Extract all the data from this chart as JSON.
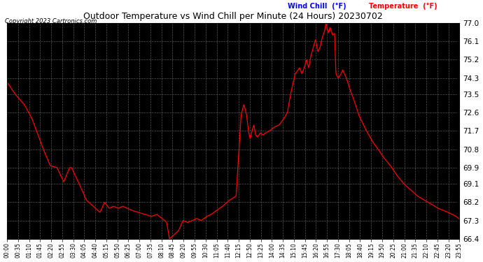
{
  "title": "Outdoor Temperature vs Wind Chill per Minute (24 Hours) 20230702",
  "copyright": "Copyright 2023 Cartronics.com",
  "legend_wind_chill": "Wind Chill  (°F)",
  "legend_temperature": "Temperature  (°F)",
  "wind_chill_color": "blue",
  "temperature_color": "red",
  "line_color": "red",
  "bg_color": "#000000",
  "fig_bg_color": "#ffffff",
  "grid_color": "#555555",
  "title_color": "#000000",
  "copyright_color": "#000000",
  "ylim": [
    66.4,
    77.0
  ],
  "yticks": [
    66.4,
    67.3,
    68.2,
    69.1,
    69.9,
    70.8,
    71.7,
    72.6,
    73.5,
    74.3,
    75.2,
    76.1,
    77.0
  ],
  "xtick_interval_minutes": 35,
  "figsize": [
    6.9,
    3.75
  ],
  "dpi": 100,
  "keypoints": [
    [
      0.0,
      74.1
    ],
    [
      0.018,
      73.5
    ],
    [
      0.038,
      73.0
    ],
    [
      0.055,
      72.3
    ],
    [
      0.08,
      70.8
    ],
    [
      0.095,
      70.0
    ],
    [
      0.11,
      69.9
    ],
    [
      0.125,
      69.2
    ],
    [
      0.138,
      69.9
    ],
    [
      0.142,
      69.9
    ],
    [
      0.155,
      69.3
    ],
    [
      0.165,
      68.8
    ],
    [
      0.175,
      68.3
    ],
    [
      0.19,
      68.0
    ],
    [
      0.205,
      67.7
    ],
    [
      0.215,
      68.2
    ],
    [
      0.225,
      67.9
    ],
    [
      0.235,
      68.0
    ],
    [
      0.245,
      67.9
    ],
    [
      0.255,
      68.0
    ],
    [
      0.265,
      67.9
    ],
    [
      0.275,
      67.8
    ],
    [
      0.29,
      67.7
    ],
    [
      0.305,
      67.6
    ],
    [
      0.318,
      67.5
    ],
    [
      0.33,
      67.6
    ],
    [
      0.342,
      67.4
    ],
    [
      0.352,
      67.2
    ],
    [
      0.358,
      66.4
    ],
    [
      0.368,
      66.6
    ],
    [
      0.378,
      66.8
    ],
    [
      0.388,
      67.3
    ],
    [
      0.398,
      67.2
    ],
    [
      0.408,
      67.3
    ],
    [
      0.418,
      67.4
    ],
    [
      0.428,
      67.3
    ],
    [
      0.44,
      67.5
    ],
    [
      0.45,
      67.6
    ],
    [
      0.462,
      67.8
    ],
    [
      0.475,
      68.0
    ],
    [
      0.49,
      68.3
    ],
    [
      0.505,
      68.5
    ],
    [
      0.516,
      72.5
    ],
    [
      0.522,
      73.0
    ],
    [
      0.528,
      72.5
    ],
    [
      0.532,
      71.7
    ],
    [
      0.536,
      71.3
    ],
    [
      0.54,
      71.7
    ],
    [
      0.544,
      72.0
    ],
    [
      0.548,
      71.5
    ],
    [
      0.552,
      71.4
    ],
    [
      0.558,
      71.6
    ],
    [
      0.564,
      71.5
    ],
    [
      0.57,
      71.6
    ],
    [
      0.578,
      71.7
    ],
    [
      0.59,
      71.9
    ],
    [
      0.6,
      72.0
    ],
    [
      0.61,
      72.3
    ],
    [
      0.618,
      72.6
    ],
    [
      0.625,
      73.5
    ],
    [
      0.635,
      74.5
    ],
    [
      0.645,
      74.8
    ],
    [
      0.65,
      74.5
    ],
    [
      0.655,
      74.8
    ],
    [
      0.66,
      75.2
    ],
    [
      0.665,
      74.8
    ],
    [
      0.67,
      75.4
    ],
    [
      0.675,
      75.8
    ],
    [
      0.68,
      76.2
    ],
    [
      0.685,
      75.6
    ],
    [
      0.69,
      75.8
    ],
    [
      0.695,
      76.3
    ],
    [
      0.7,
      76.6
    ],
    [
      0.703,
      77.0
    ],
    [
      0.706,
      76.7
    ],
    [
      0.709,
      76.5
    ],
    [
      0.712,
      76.8
    ],
    [
      0.715,
      76.6
    ],
    [
      0.718,
      76.4
    ],
    [
      0.722,
      76.5
    ],
    [
      0.725,
      74.5
    ],
    [
      0.73,
      74.3
    ],
    [
      0.736,
      74.5
    ],
    [
      0.74,
      74.7
    ],
    [
      0.744,
      74.5
    ],
    [
      0.748,
      74.3
    ],
    [
      0.755,
      73.8
    ],
    [
      0.765,
      73.2
    ],
    [
      0.775,
      72.5
    ],
    [
      0.79,
      71.8
    ],
    [
      0.805,
      71.2
    ],
    [
      0.818,
      70.8
    ],
    [
      0.83,
      70.4
    ],
    [
      0.845,
      70.0
    ],
    [
      0.86,
      69.5
    ],
    [
      0.875,
      69.1
    ],
    [
      0.89,
      68.8
    ],
    [
      0.905,
      68.5
    ],
    [
      0.92,
      68.3
    ],
    [
      0.936,
      68.1
    ],
    [
      0.95,
      67.9
    ],
    [
      0.962,
      67.8
    ],
    [
      0.972,
      67.7
    ],
    [
      0.982,
      67.6
    ],
    [
      0.99,
      67.5
    ],
    [
      0.996,
      67.4
    ],
    [
      1.0,
      67.3
    ]
  ]
}
